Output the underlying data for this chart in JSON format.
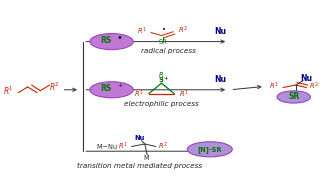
{
  "bg_color": "#ffffff",
  "arrow_color": "#333333",
  "red_color": "#cc2200",
  "green_color": "#007700",
  "blue_color": "#00008b",
  "purple_fill": "#c07ad6",
  "purple_fill2": "#b090d8",
  "purple_edge": "#9944bb",
  "radical_label": "radical process",
  "electrophilic_label": "electrophilic process",
  "transition_label": "transition metal mediated process",
  "figw": 3.33,
  "figh": 1.89,
  "dpi": 100
}
